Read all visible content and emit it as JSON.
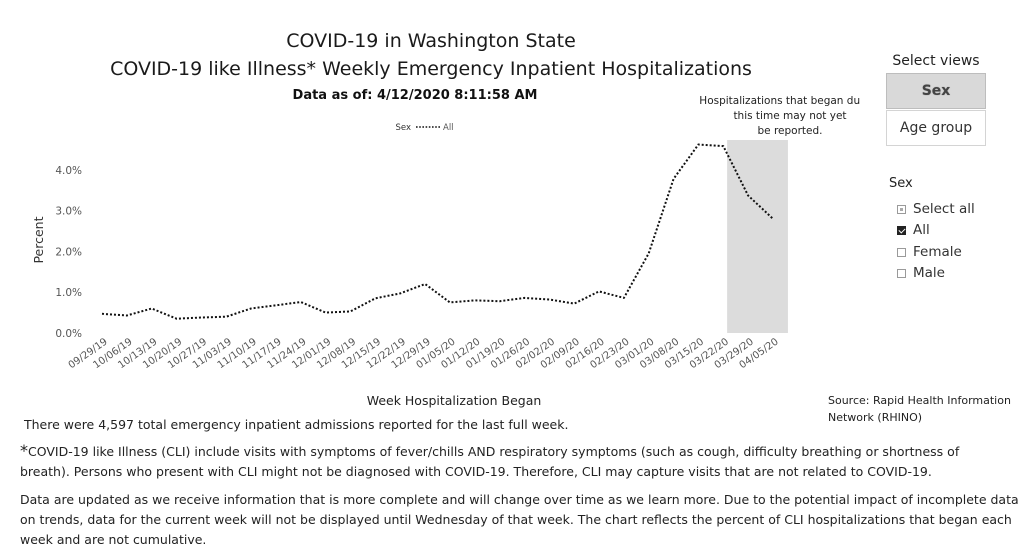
{
  "header": {
    "title": "COVID-19 in Washington State",
    "subtitle": "COVID-19 like Illness* Weekly Emergency Inpatient Hospitalizations",
    "as_of_label": "Data as of:",
    "as_of_value": "4/12/2020 8:11:58 AM"
  },
  "views": {
    "label": "Select views",
    "buttons": [
      "Sex",
      "Age group"
    ],
    "active": "Sex"
  },
  "slicer": {
    "title": "Sex",
    "items": [
      {
        "label": "Select all",
        "state": "partial"
      },
      {
        "label": "All",
        "state": "checked"
      },
      {
        "label": "Female",
        "state": "unchecked"
      },
      {
        "label": "Male",
        "state": "unchecked"
      }
    ]
  },
  "chart_data": {
    "type": "line",
    "xlabel": "Week Hospitalization Began",
    "ylabel": "Percent",
    "ylim": [
      0,
      4.6
    ],
    "yticks": [
      "0.0%",
      "1.0%",
      "2.0%",
      "3.0%",
      "4.0%"
    ],
    "ytick_values": [
      0,
      1,
      2,
      3,
      4
    ],
    "legend_title": "Sex",
    "legend_position": "top",
    "grid": false,
    "line_style": "dotted",
    "line_color": "#111111",
    "shade_color": "#dcdcdc",
    "annotation": "Hospitalizations that began during this time may not yet be reported.",
    "shaded_range": [
      "03/29/20",
      "04/05/20"
    ],
    "categories": [
      "09/29/19",
      "10/06/19",
      "10/13/19",
      "10/20/19",
      "10/27/19",
      "11/03/19",
      "11/10/19",
      "11/17/19",
      "11/24/19",
      "12/01/19",
      "12/08/19",
      "12/15/19",
      "12/22/19",
      "12/29/19",
      "01/05/20",
      "01/12/20",
      "01/19/20",
      "01/26/20",
      "02/02/20",
      "02/09/20",
      "02/16/20",
      "02/23/20",
      "03/01/20",
      "03/08/20",
      "03/15/20",
      "03/22/20",
      "03/29/20",
      "04/05/20"
    ],
    "series": [
      {
        "name": "All",
        "values": [
          0.47,
          0.43,
          0.6,
          0.35,
          0.38,
          0.4,
          0.6,
          0.68,
          0.76,
          0.5,
          0.53,
          0.85,
          0.97,
          1.2,
          0.75,
          0.8,
          0.78,
          0.86,
          0.82,
          0.72,
          1.02,
          0.86,
          1.95,
          3.78,
          4.62,
          4.58,
          3.37,
          2.8
        ]
      }
    ]
  },
  "footer": {
    "source": "Source: Rapid Health Information Network (RHINO)",
    "total_text": "There were 4,597 total emergency inpatient admissions reported for the last full week.",
    "asterisk": "*",
    "note1": "COVID-19 like Illness (CLI) include visits with symptoms of fever/chills AND respiratory symptoms (such as cough, difficulty breathing or shortness of breath). Persons who present with CLI might not be diagnosed with COVID-19. Therefore, CLI may capture visits that are not related to COVID-19.",
    "note2": "Data are updated as we receive information that is more complete and will change over time as we learn more. Due to the potential impact of incomplete data on trends, data for the current week will not be displayed until Wednesday of that week. The chart reflects the percent of CLI hospitalizations that began each week and are not cumulative."
  }
}
